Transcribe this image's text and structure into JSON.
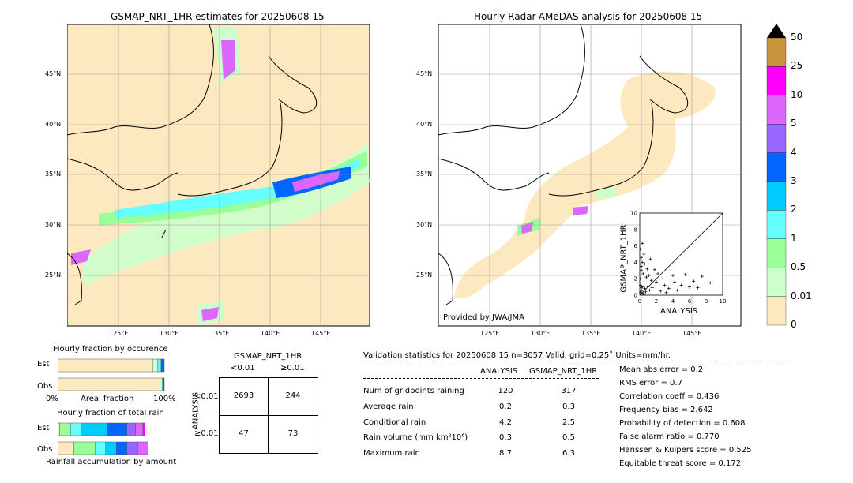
{
  "left_map": {
    "title": "GSMAP_NRT_1HR estimates for 20250608 15",
    "lat_labels": [
      "45°N",
      "40°N",
      "35°N",
      "30°N",
      "25°N"
    ],
    "lon_labels": [
      "125°E",
      "130°E",
      "135°E",
      "140°E",
      "145°E"
    ]
  },
  "right_map": {
    "title": "Hourly Radar-AMeDAS analysis for 20250608 15",
    "lat_labels": [
      "45°N",
      "40°N",
      "35°N",
      "30°N",
      "25°N"
    ],
    "lon_labels": [
      "125°E",
      "130°E",
      "135°E",
      "140°E",
      "145°E"
    ],
    "credit": "Provided by JWA/JMA"
  },
  "colorbar": {
    "labels": [
      "50",
      "25",
      "10",
      "5",
      "4",
      "3",
      "2",
      "1",
      "0.5",
      "0.01",
      "0"
    ],
    "colors": [
      "#c8963c",
      "#ff00ff",
      "#dd66ff",
      "#9966ff",
      "#0066ff",
      "#00ccff",
      "#66ffff",
      "#99ff99",
      "#ccffcc",
      "#fde9c0"
    ],
    "extend_color": "#000000"
  },
  "chart_data": [
    {
      "type": "scatter",
      "name_xlabel": "ANALYSIS",
      "xlabel": "ANALYSIS",
      "ylabel": "GSMAP_NRT_1HR",
      "xlim": [
        0,
        10
      ],
      "ylim": [
        0,
        10
      ],
      "xticks": [
        "0",
        "2",
        "4",
        "6",
        "8",
        "10"
      ],
      "yticks": [
        "0",
        "2",
        "4",
        "6",
        "8",
        "10"
      ],
      "points": [
        [
          0.1,
          0.3
        ],
        [
          0.2,
          0.5
        ],
        [
          0.3,
          1.0
        ],
        [
          0.1,
          2.0
        ],
        [
          0.4,
          0.2
        ],
        [
          0.5,
          1.5
        ],
        [
          0.2,
          3.0
        ],
        [
          0.6,
          0.8
        ],
        [
          0.8,
          2.2
        ],
        [
          0.3,
          4.0
        ],
        [
          0.1,
          1.2
        ],
        [
          0.7,
          0.4
        ],
        [
          1.0,
          1.0
        ],
        [
          1.2,
          0.6
        ],
        [
          0.4,
          2.6
        ],
        [
          0.2,
          3.5
        ],
        [
          0.9,
          3.2
        ],
        [
          1.5,
          0.9
        ],
        [
          2.0,
          1.6
        ],
        [
          2.5,
          0.5
        ],
        [
          3.0,
          1.2
        ],
        [
          3.5,
          0.8
        ],
        [
          4.2,
          1.6
        ],
        [
          5.0,
          1.2
        ],
        [
          5.5,
          2.5
        ],
        [
          6.0,
          1.0
        ],
        [
          7.0,
          0.9
        ],
        [
          7.5,
          2.3
        ],
        [
          8.5,
          1.5
        ],
        [
          4.0,
          2.4
        ],
        [
          2.2,
          2.6
        ],
        [
          1.8,
          3.1
        ],
        [
          0.5,
          5.0
        ],
        [
          0.3,
          6.3
        ],
        [
          0.2,
          4.6
        ],
        [
          0.6,
          3.8
        ],
        [
          1.1,
          2.4
        ],
        [
          1.4,
          1.8
        ],
        [
          0.2,
          0.9
        ],
        [
          0.5,
          0.1
        ],
        [
          3.2,
          0.3
        ],
        [
          4.5,
          0.6
        ],
        [
          6.5,
          1.7
        ],
        [
          0.1,
          5.6
        ],
        [
          1.3,
          4.4
        ]
      ]
    },
    {
      "type": "bar",
      "title": "Hourly fraction by occurence",
      "categories": [
        "Est",
        "Obs"
      ],
      "xlabel": "Areal fraction",
      "xtick_labels": [
        "0%",
        "100%"
      ],
      "series": [
        {
          "values": [
            0.89,
            0.96
          ]
        },
        {
          "values": [
            0.05,
            0.02
          ]
        },
        {
          "values": [
            0.03,
            0.01
          ]
        },
        {
          "values": [
            0.03,
            0.01
          ]
        }
      ],
      "segment_colors": [
        "#fde9c0",
        "#ccffcc",
        "#66ffff",
        "#0066ff"
      ]
    },
    {
      "type": "bar",
      "title": "Hourly fraction of total rain",
      "categories": [
        "Est",
        "Obs"
      ],
      "xlabel": "Rainfall accumulation by amount",
      "series": [
        {
          "values": [
            0.02,
            0.15
          ]
        },
        {
          "values": [
            0.1,
            0.2
          ]
        },
        {
          "values": [
            0.1,
            0.1
          ]
        },
        {
          "values": [
            0.25,
            0.1
          ]
        },
        {
          "values": [
            0.18,
            0.1
          ]
        },
        {
          "values": [
            0.08,
            0.1
          ]
        },
        {
          "values": [
            0.07,
            0.1
          ]
        },
        {
          "values": [
            0.02,
            0.0
          ]
        }
      ],
      "segment_colors": [
        "#fde9c0",
        "#99ff99",
        "#66ffff",
        "#00ccff",
        "#0066ff",
        "#9966ff",
        "#dd66ff",
        "#ff00ff"
      ]
    }
  ],
  "contingency": {
    "title": "GSMAP_NRT_1HR",
    "col_labels": [
      "<0.01",
      "≥0.01"
    ],
    "row_axis": "ANALYSIS",
    "row_labels": [
      "<0.01",
      "≥0.01"
    ],
    "cells": [
      [
        "2693",
        "244"
      ],
      [
        "47",
        "73"
      ]
    ]
  },
  "validation": {
    "header": "Validation statistics for 20250608 15  n=3057 Valid. grid=0.25˚ Units=mm/hr.",
    "col1": "ANALYSIS",
    "col2": "GSMAP_NRT_1HR",
    "rows": [
      {
        "label": "Num of gridpoints raining",
        "a": "120",
        "g": "317"
      },
      {
        "label": "Average rain",
        "a": "0.2",
        "g": "0.3"
      },
      {
        "label": "Conditional rain",
        "a": "4.2",
        "g": "2.5"
      },
      {
        "label": "Rain volume (mm km²10⁶)",
        "a": "0.3",
        "g": "0.5"
      },
      {
        "label": "Maximum rain",
        "a": "8.7",
        "g": "6.3"
      }
    ],
    "scores": [
      "Mean abs error =    0.2",
      "RMS error =    0.7",
      "Correlation coeff =  0.436",
      "Frequency bias =  2.642",
      "Probability of detection =  0.608",
      "False alarm ratio =  0.770",
      "Hanssen & Kuipers score =  0.525",
      "Equitable threat score =  0.172"
    ]
  }
}
